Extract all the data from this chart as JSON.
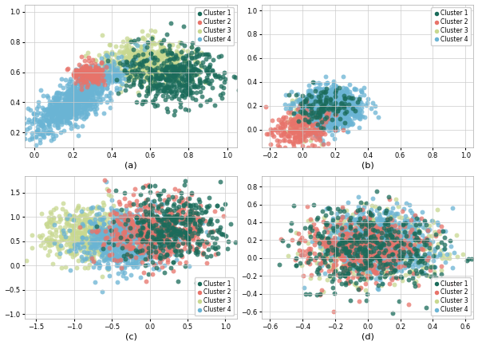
{
  "colors": {
    "cluster1": "#1a6b5a",
    "cluster2": "#e8736a",
    "cluster3": "#c8d890",
    "cluster4": "#6ab4d4"
  },
  "alpha": 0.75,
  "marker_size": 18,
  "labels": [
    "Cluster 1",
    "Cluster 2",
    "Cluster 3",
    "Cluster 4"
  ],
  "subplot_labels": [
    "(a)",
    "(b)",
    "(c)",
    "(d)"
  ],
  "subplots": {
    "a": {
      "xlim": [
        -0.05,
        1.05
      ],
      "ylim": [
        0.1,
        1.05
      ],
      "xticks": [
        0.0,
        0.2,
        0.4,
        0.6,
        0.8,
        1.0
      ],
      "yticks": [
        0.2,
        0.4,
        0.6,
        0.8,
        1.0
      ]
    },
    "b": {
      "xlim": [
        -0.25,
        1.05
      ],
      "ylim": [
        -0.15,
        1.05
      ],
      "xticks": [
        -0.2,
        0.0,
        0.2,
        0.4,
        0.6,
        0.8,
        1.0
      ],
      "yticks": [
        0.0,
        0.2,
        0.4,
        0.6,
        0.8,
        1.0
      ]
    },
    "c": {
      "xlim": [
        -1.65,
        1.15
      ],
      "ylim": [
        -1.1,
        1.85
      ],
      "xticks": [
        -1.5,
        -1.0,
        -0.5,
        0.0,
        0.5,
        1.0
      ],
      "yticks": [
        -1.0,
        -0.5,
        0.0,
        0.5,
        1.0,
        1.5
      ]
    },
    "d": {
      "xlim": [
        -0.65,
        0.65
      ],
      "ylim": [
        -0.68,
        0.92
      ],
      "xticks": [
        -0.6,
        -0.4,
        -0.2,
        0.0,
        0.2,
        0.4,
        0.6
      ],
      "yticks": [
        -0.6,
        -0.4,
        -0.2,
        0.0,
        0.2,
        0.4,
        0.6,
        0.8
      ]
    }
  }
}
